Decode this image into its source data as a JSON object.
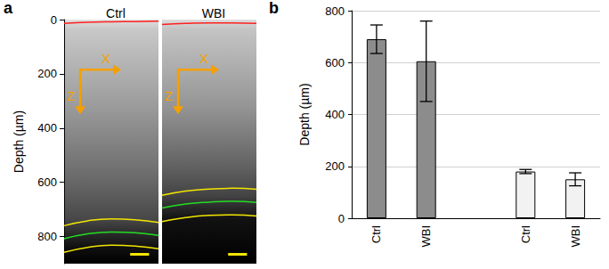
{
  "chart_data": [
    {
      "type": "image",
      "panel": "a",
      "title": "Ctrl",
      "ylabel": "Depth (µm)",
      "ylim": [
        0,
        900
      ],
      "yticks": [
        0,
        200,
        400,
        600,
        800
      ],
      "x": [
        0,
        0.25,
        0.5,
        0.75,
        1
      ],
      "series": [
        {
          "color": "#ff2020",
          "values": [
            14,
            10,
            8,
            7,
            6
          ]
        },
        {
          "color": "#f2e600",
          "values": [
            760,
            742,
            735,
            738,
            748
          ]
        },
        {
          "color": "#22dd22",
          "values": [
            808,
            790,
            783,
            786,
            796
          ]
        },
        {
          "color": "#f2e600",
          "values": [
            858,
            840,
            832,
            835,
            845
          ]
        }
      ],
      "annotations": [
        "X",
        "Z"
      ]
    },
    {
      "type": "image",
      "title": "WBI",
      "ylim": [
        0,
        900
      ],
      "yticks": [
        0,
        200,
        400,
        600,
        800
      ],
      "tick_labels": false,
      "x": [
        0,
        0.25,
        0.5,
        0.75,
        1
      ],
      "series": [
        {
          "color": "#ff2020",
          "values": [
            18,
            14,
            12,
            12,
            14
          ]
        },
        {
          "color": "#f2e600",
          "values": [
            648,
            632,
            625,
            622,
            626
          ]
        },
        {
          "color": "#22dd22",
          "values": [
            695,
            680,
            673,
            670,
            674
          ]
        },
        {
          "color": "#f2e600",
          "values": [
            745,
            730,
            722,
            720,
            724
          ]
        }
      ],
      "annotations": [
        "X",
        "Z"
      ]
    },
    {
      "type": "bar",
      "panel": "b",
      "ylabel": "Depth (µm)",
      "categories": [
        "Ctrl",
        "WBI",
        null,
        "Ctrl",
        "WBI"
      ],
      "values": [
        690,
        605,
        null,
        180,
        150
      ],
      "errors": [
        55,
        155,
        null,
        8,
        25
      ],
      "colors": [
        "#8c8c8c",
        "#8c8c8c",
        null,
        "#f2f2f2",
        "#f2f2f2"
      ],
      "ylim": [
        0,
        800
      ],
      "yticks": [
        0,
        200,
        400,
        600,
        800
      ],
      "grid": true
    }
  ]
}
